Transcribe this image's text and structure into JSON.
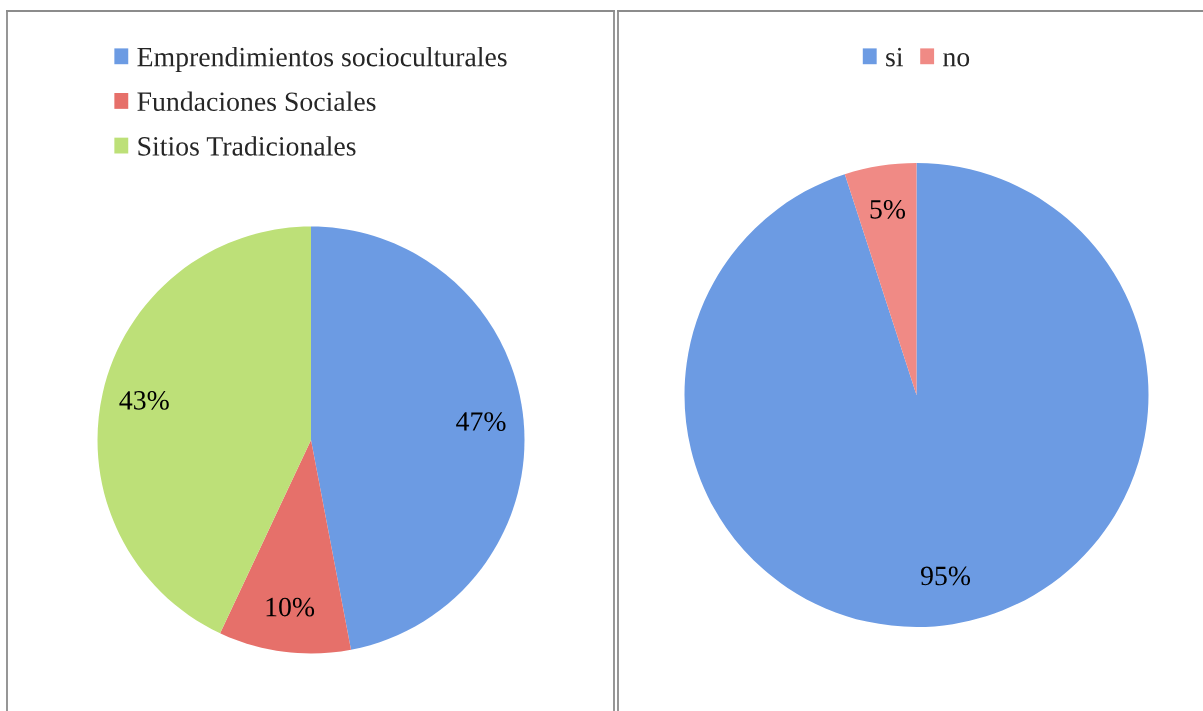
{
  "chart_data": [
    {
      "type": "pie",
      "categories": [
        "Emprendimientos socioculturales",
        "Fundaciones Sociales",
        "Sitios Tradicionales"
      ],
      "values": [
        47,
        10,
        43
      ],
      "colors": [
        "#6c9be3",
        "#e6706a",
        "#bde078"
      ],
      "value_labels": [
        "47%",
        "10%",
        "43%"
      ],
      "legend": "top"
    },
    {
      "type": "pie",
      "categories": [
        "si",
        "no"
      ],
      "values": [
        95,
        5
      ],
      "colors": [
        "#6c9be3",
        "#f08a85"
      ],
      "value_labels": [
        "95%",
        "5%"
      ],
      "legend": "top"
    }
  ]
}
